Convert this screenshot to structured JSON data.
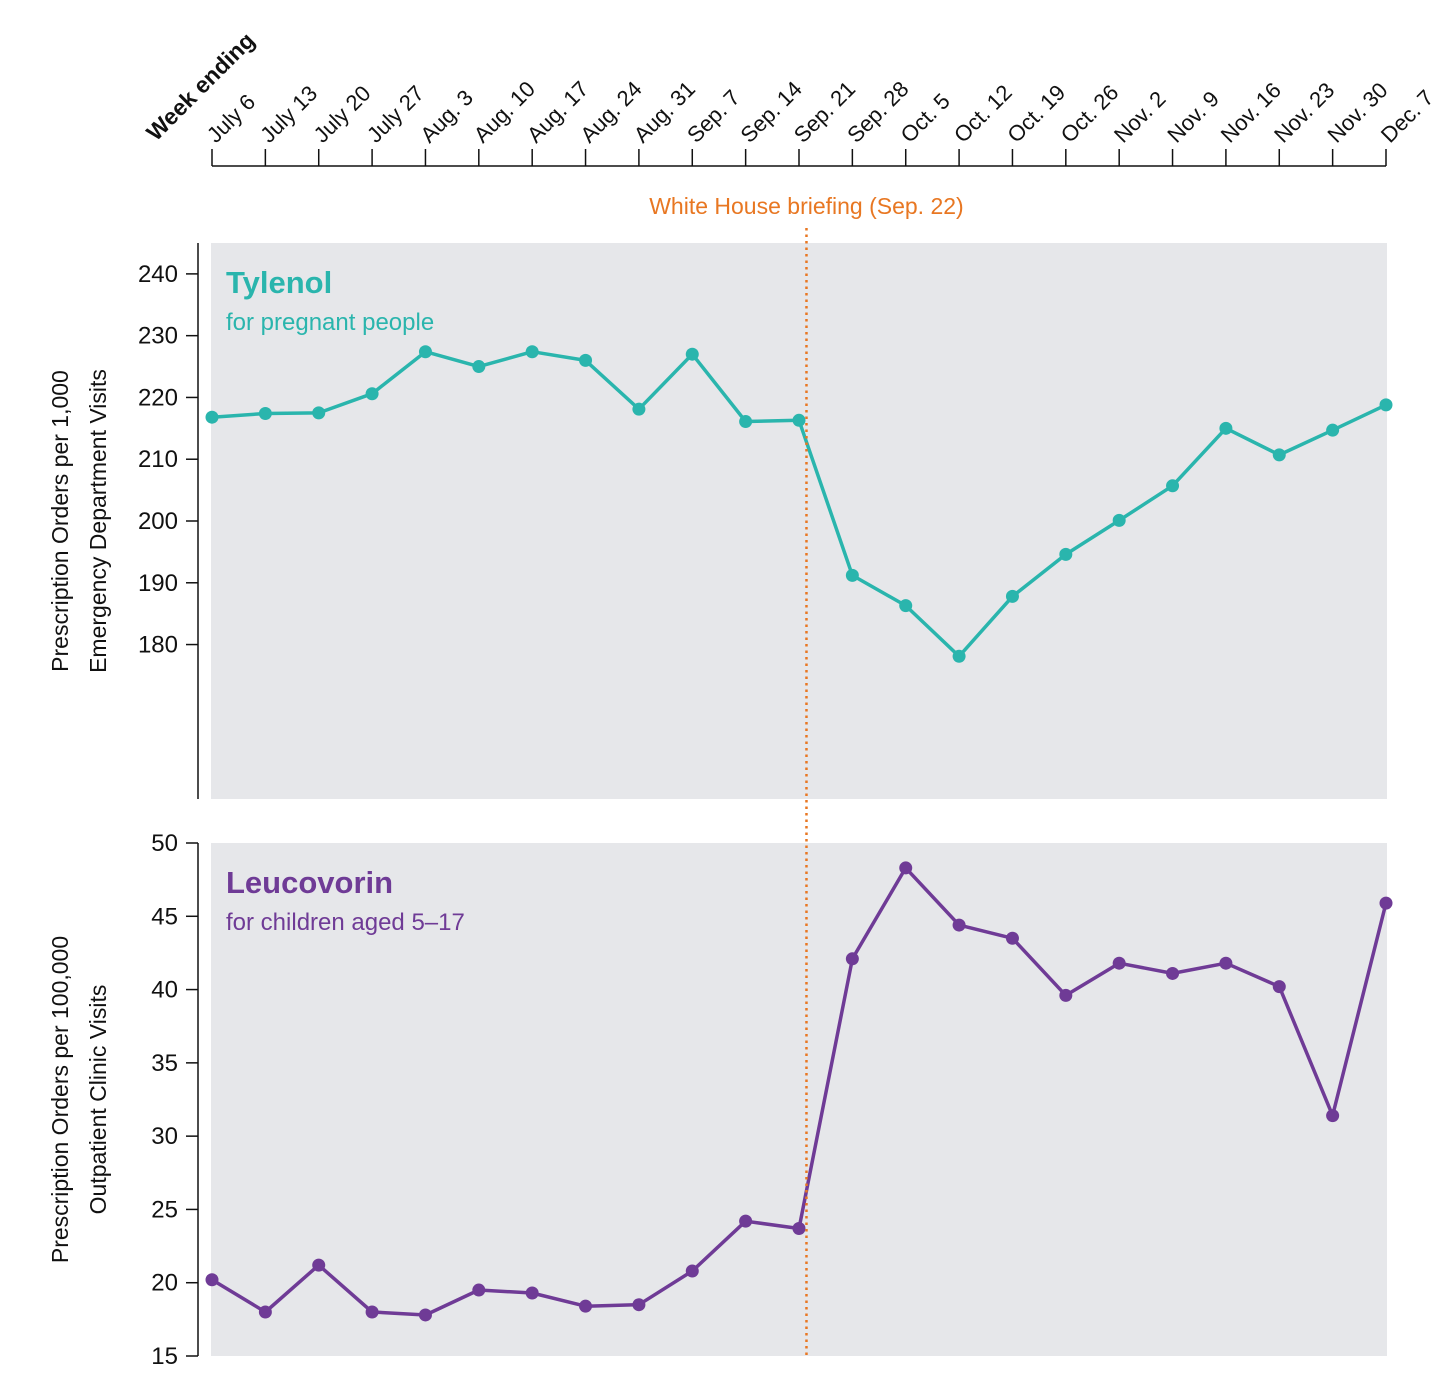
{
  "chart_data": {
    "type": "line",
    "x_axis_title": "Week ending",
    "categories": [
      "July 6",
      "July 13",
      "July 20",
      "July 27",
      "Aug. 3",
      "Aug. 10",
      "Aug. 17",
      "Aug. 24",
      "Aug. 31",
      "Sep. 7",
      "Sep. 14",
      "Sep. 21",
      "Sep. 28",
      "Oct. 5",
      "Oct. 12",
      "Oct. 19",
      "Oct. 26",
      "Nov. 2",
      "Nov. 9",
      "Nov. 16",
      "Nov. 23",
      "Nov. 30",
      "Dec. 7"
    ],
    "annotation": {
      "label": "White House briefing (Sep. 22)",
      "x_position_weeks": 11.14,
      "color": "#e87722"
    },
    "panels": [
      {
        "name": "tylenol",
        "title": "Tylenol",
        "subtitle": "for pregnant people",
        "ylabel_line1": "Prescription Orders per 1,000",
        "ylabel_line2": "Emergency Department Visits",
        "ylim": [
          155,
          245
        ],
        "yticks": [
          180,
          190,
          200,
          210,
          220,
          230,
          240
        ],
        "color": "#2ab5ad",
        "values": [
          216.8,
          217.4,
          217.5,
          220.6,
          227.4,
          225.0,
          227.4,
          226.0,
          218.1,
          227.0,
          216.1,
          216.3,
          191.2,
          186.3,
          178.1,
          187.8,
          194.6,
          200.1,
          205.7,
          215.0,
          210.7,
          214.7,
          218.8
        ]
      },
      {
        "name": "leucovorin",
        "title": "Leucovorin",
        "subtitle": "for children aged 5–17",
        "ylabel_line1": "Prescription Orders per 100,000",
        "ylabel_line2": "Outpatient Clinic Visits",
        "ylim": [
          15,
          50
        ],
        "yticks": [
          15,
          20,
          25,
          30,
          35,
          40,
          45,
          50
        ],
        "color": "#6f3b96",
        "values": [
          20.2,
          18.0,
          21.2,
          18.0,
          17.8,
          19.5,
          19.3,
          18.4,
          18.5,
          20.8,
          24.2,
          23.7,
          42.1,
          48.3,
          44.4,
          43.5,
          39.6,
          41.8,
          41.1,
          41.8,
          40.2,
          31.4,
          45.9
        ]
      }
    ],
    "grid": false
  }
}
